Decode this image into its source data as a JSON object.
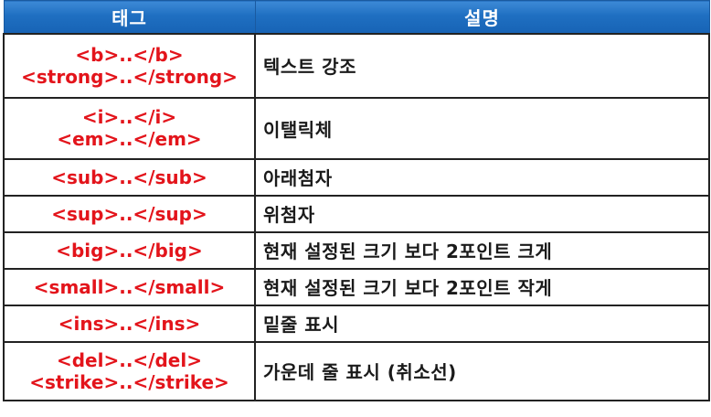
{
  "table": {
    "headers": {
      "tag": "태그",
      "description": "설명"
    },
    "rows": [
      {
        "tags": [
          "<b>..</b>",
          "<strong>..</strong>"
        ],
        "description": "텍스트 강조"
      },
      {
        "tags": [
          "<i>..</i>",
          "<em>..</em>"
        ],
        "description": "이탤릭체"
      },
      {
        "tags": [
          "<sub>..</sub>"
        ],
        "description": "아래첨자"
      },
      {
        "tags": [
          "<sup>..</sup>"
        ],
        "description": "위첨자"
      },
      {
        "tags": [
          "<big>..</big>"
        ],
        "description": "현재 설정된 크기 보다 2포인트 크게"
      },
      {
        "tags": [
          "<small>..</small>"
        ],
        "description": "현재 설정된 크기 보다 2포인트 작게"
      },
      {
        "tags": [
          "<ins>..</ins>"
        ],
        "description": "밑줄 표시"
      },
      {
        "tags": [
          "<del>..</del>",
          "<strike>..</strike>"
        ],
        "description": "가운데 줄 표시 (취소선)"
      }
    ]
  },
  "colors": {
    "header_background": "#1f6fc1",
    "header_text": "#ffffff",
    "tag_text": "#e3141b",
    "description_text": "#1a1a1a",
    "border": "#222222"
  }
}
